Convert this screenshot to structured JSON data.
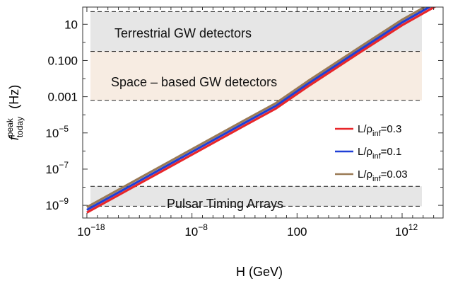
{
  "chart_data": {
    "type": "line",
    "title": "",
    "xlabel": "H (GeV)",
    "ylabel_main": "f",
    "ylabel_sup": "peak",
    "ylabel_sub": "today",
    "ylabel_unit": "(Hz)",
    "x_scale": "log",
    "y_scale": "log",
    "xlim_log10": [
      -18.4,
      15.9
    ],
    "ylim_log10": [
      -9.7,
      1.95
    ],
    "x_ticks": [
      {
        "log10": -18,
        "base": "10",
        "exp": "−18"
      },
      {
        "log10": -8,
        "base": "10",
        "exp": "−8"
      },
      {
        "log10": 2,
        "plain": "100"
      },
      {
        "log10": 12,
        "base": "10",
        "exp": "12"
      }
    ],
    "y_ticks": [
      {
        "log10": 1,
        "plain": "10"
      },
      {
        "log10": -1,
        "plain": "0.100"
      },
      {
        "log10": -3,
        "plain": "0.001"
      },
      {
        "log10": -5,
        "base": "10",
        "exp": "−5"
      },
      {
        "log10": -7,
        "base": "10",
        "exp": "−7"
      },
      {
        "log10": -9,
        "base": "10",
        "exp": "−9"
      }
    ],
    "bands": [
      {
        "label": "Terrestrial GW detectors",
        "y_log10": [
          -0.5,
          1.7
        ],
        "color": "#e6e6e6"
      },
      {
        "label": "Space – based GW detectors",
        "y_log10": [
          -3.2,
          -0.5
        ],
        "color": "#f7ece2"
      },
      {
        "label": "Pulsar Timing Arrays",
        "y_log10": [
          -9.05,
          -7.95
        ],
        "color": "#e6e6e6"
      }
    ],
    "series": [
      {
        "name": "L/ρ",
        "name_sub": "inf",
        "name_value": "=0.3",
        "color": "#e8262a",
        "points": [
          [
            -18,
            -9.4
          ],
          [
            -13,
            -7.8
          ],
          [
            -8,
            -6.2
          ],
          [
            -3,
            -4.6
          ],
          [
            0,
            -3.65
          ],
          [
            3,
            -2.45
          ],
          [
            8,
            -0.55
          ],
          [
            12,
            0.95
          ],
          [
            15.5,
            2.1
          ]
        ]
      },
      {
        "name": "L/ρ",
        "name_sub": "inf",
        "name_value": "=0.1",
        "color": "#1f3fd6",
        "points": [
          [
            -18,
            -9.25
          ],
          [
            -13,
            -7.65
          ],
          [
            -8,
            -6.05
          ],
          [
            -3,
            -4.45
          ],
          [
            0,
            -3.5
          ],
          [
            3,
            -2.3
          ],
          [
            8,
            -0.4
          ],
          [
            12,
            1.1
          ],
          [
            15.5,
            2.25
          ]
        ]
      },
      {
        "name": "L/ρ",
        "name_sub": "inf",
        "name_value": "=0.03",
        "color": "#9a7a56",
        "points": [
          [
            -18,
            -9.1
          ],
          [
            -13,
            -7.5
          ],
          [
            -8,
            -5.9
          ],
          [
            -3,
            -4.3
          ],
          [
            0,
            -3.35
          ],
          [
            3,
            -2.15
          ],
          [
            8,
            -0.25
          ],
          [
            12,
            1.25
          ],
          [
            15.5,
            2.4
          ]
        ]
      }
    ],
    "legend_position": "right, mid-plot",
    "grid": false
  }
}
